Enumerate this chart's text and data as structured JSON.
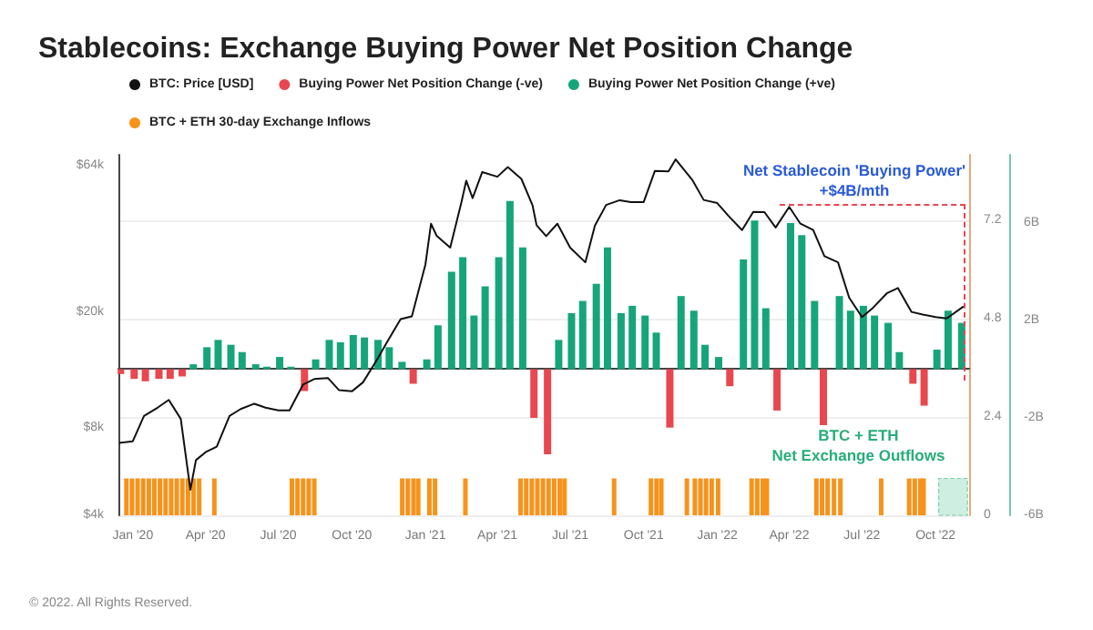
{
  "chart_data": {
    "type": "bar",
    "title": "Stablecoins: Exchange Buying Power Net Position Change",
    "x": [
      "2019-12-15",
      "2020-01-01",
      "2020-01-15",
      "2020-02-01",
      "2020-02-15",
      "2020-03-01",
      "2020-03-15",
      "2020-04-01",
      "2020-04-15",
      "2020-05-01",
      "2020-05-15",
      "2020-06-01",
      "2020-06-15",
      "2020-07-01",
      "2020-07-15",
      "2020-08-01",
      "2020-08-15",
      "2020-09-01",
      "2020-09-15",
      "2020-10-01",
      "2020-10-15",
      "2020-11-01",
      "2020-11-15",
      "2020-12-01",
      "2020-12-15",
      "2021-01-01",
      "2021-01-15",
      "2021-02-01",
      "2021-02-15",
      "2021-03-01",
      "2021-03-15",
      "2021-04-01",
      "2021-04-15",
      "2021-05-01",
      "2021-05-15",
      "2021-06-01",
      "2021-06-15",
      "2021-07-01",
      "2021-07-15",
      "2021-08-01",
      "2021-08-15",
      "2021-09-01",
      "2021-09-15",
      "2021-10-01",
      "2021-10-15",
      "2021-11-01",
      "2021-11-15",
      "2021-12-01",
      "2021-12-15",
      "2022-01-01",
      "2022-01-15",
      "2022-02-01",
      "2022-02-15",
      "2022-03-01",
      "2022-03-15",
      "2022-04-01",
      "2022-04-15",
      "2022-05-01",
      "2022-05-12",
      "2022-06-01",
      "2022-06-15",
      "2022-07-01",
      "2022-07-15",
      "2022-08-01",
      "2022-08-15",
      "2022-09-01",
      "2022-09-15",
      "2022-10-01",
      "2022-10-15",
      "2022-11-01"
    ],
    "series": [
      {
        "name": "BTC: Price [USD]",
        "type": "line",
        "axis": "y",
        "color": "#111111",
        "x": [
          "2019-12-15",
          "2020-01-01",
          "2020-01-15",
          "2020-02-01",
          "2020-02-15",
          "2020-03-01",
          "2020-03-13",
          "2020-03-20",
          "2020-04-01",
          "2020-04-15",
          "2020-05-01",
          "2020-05-15",
          "2020-06-01",
          "2020-06-15",
          "2020-07-01",
          "2020-07-15",
          "2020-08-01",
          "2020-08-15",
          "2020-09-01",
          "2020-09-15",
          "2020-10-01",
          "2020-10-15",
          "2020-11-01",
          "2020-11-15",
          "2020-12-01",
          "2020-12-15",
          "2021-01-01",
          "2021-01-08",
          "2021-01-15",
          "2021-02-01",
          "2021-02-15",
          "2021-02-21",
          "2021-03-01",
          "2021-03-13",
          "2021-04-01",
          "2021-04-14",
          "2021-05-01",
          "2021-05-15",
          "2021-05-20",
          "2021-06-01",
          "2021-06-15",
          "2021-07-01",
          "2021-07-20",
          "2021-08-01",
          "2021-08-15",
          "2021-09-01",
          "2021-09-15",
          "2021-10-01",
          "2021-10-15",
          "2021-11-01",
          "2021-11-10",
          "2021-12-01",
          "2021-12-15",
          "2022-01-01",
          "2022-01-15",
          "2022-02-01",
          "2022-02-15",
          "2022-03-01",
          "2022-03-15",
          "2022-04-01",
          "2022-04-15",
          "2022-05-01",
          "2022-05-15",
          "2022-06-01",
          "2022-06-15",
          "2022-07-01",
          "2022-07-15",
          "2022-08-01",
          "2022-08-15",
          "2022-09-01",
          "2022-09-15",
          "2022-10-01",
          "2022-10-15",
          "2022-11-05"
        ],
        "values": [
          7100,
          7200,
          8800,
          9400,
          10000,
          8600,
          4900,
          6200,
          6600,
          6900,
          8800,
          9300,
          9700,
          9400,
          9200,
          9200,
          11300,
          11800,
          11900,
          10800,
          10700,
          11500,
          13700,
          16000,
          19000,
          19400,
          29300,
          40500,
          36800,
          33500,
          48000,
          57000,
          49600,
          61000,
          58800,
          63500,
          57800,
          46800,
          40000,
          36700,
          40500,
          33500,
          29800,
          39900,
          47000,
          48800,
          48100,
          48100,
          61600,
          61300,
          67500,
          57200,
          48900,
          47700,
          43100,
          38500,
          44500,
          44400,
          39300,
          46300,
          40500,
          38500,
          31300,
          29800,
          22500,
          19300,
          20800,
          23300,
          24300,
          20100,
          19700,
          19300,
          19100,
          21000
        ]
      },
      {
        "name": "Buying Power Net Position Change (-ve)",
        "axis": "y2",
        "color": "#e8474f",
        "values": [
          -0.2,
          -0.4,
          -0.5,
          -0.4,
          -0.4,
          -0.3,
          null,
          null,
          null,
          null,
          null,
          null,
          null,
          null,
          null,
          -0.9,
          null,
          null,
          null,
          null,
          null,
          null,
          null,
          null,
          -0.6,
          null,
          null,
          null,
          null,
          null,
          null,
          null,
          null,
          null,
          -2.0,
          -3.5,
          null,
          null,
          null,
          null,
          null,
          null,
          null,
          null,
          null,
          -2.4,
          null,
          null,
          null,
          null,
          -0.7,
          null,
          null,
          null,
          -1.7,
          null,
          null,
          null,
          -2.3,
          null,
          null,
          null,
          null,
          null,
          null,
          -0.6,
          -1.5,
          null,
          null,
          null
        ]
      },
      {
        "name": "Buying Power Net Position Change (+ve)",
        "axis": "y2",
        "color": "#16a57a",
        "values": [
          null,
          null,
          null,
          null,
          null,
          null,
          0.2,
          0.9,
          1.2,
          1.0,
          0.7,
          0.2,
          0.1,
          0.5,
          0.1,
          null,
          0.4,
          1.2,
          1.1,
          1.4,
          1.3,
          1.2,
          0.9,
          0.3,
          null,
          0.4,
          1.8,
          4.0,
          4.6,
          2.2,
          3.4,
          4.6,
          6.9,
          5.0,
          null,
          null,
          1.2,
          2.3,
          2.8,
          3.5,
          5.0,
          2.3,
          2.6,
          2.2,
          1.5,
          null,
          3.0,
          2.4,
          1.0,
          0.5,
          null,
          4.5,
          6.1,
          2.5,
          null,
          6.0,
          5.5,
          2.8,
          null,
          3.0,
          2.4,
          2.6,
          2.2,
          1.9,
          0.7,
          null,
          null,
          0.8,
          2.4,
          1.9
        ]
      },
      {
        "name": "BTC + ETH 30-day Exchange Inflows",
        "axis": "y3",
        "color": "#f7931a",
        "x": [
          "2019-12-24",
          "2019-12-31",
          "2020-01-07",
          "2020-01-14",
          "2020-01-21",
          "2020-01-28",
          "2020-02-04",
          "2020-02-11",
          "2020-02-18",
          "2020-02-25",
          "2020-03-03",
          "2020-03-10",
          "2020-03-17",
          "2020-03-24",
          "2020-04-12",
          "2020-07-18",
          "2020-07-25",
          "2020-08-01",
          "2020-08-08",
          "2020-08-15",
          "2020-12-03",
          "2020-12-10",
          "2020-12-17",
          "2020-12-23",
          "2021-01-06",
          "2021-01-13",
          "2021-02-20",
          "2021-04-30",
          "2021-05-07",
          "2021-05-14",
          "2021-05-21",
          "2021-05-28",
          "2021-06-04",
          "2021-06-11",
          "2021-06-18",
          "2021-06-24",
          "2021-08-25",
          "2021-10-10",
          "2021-10-17",
          "2021-10-23",
          "2021-11-24",
          "2021-12-04",
          "2021-12-11",
          "2021-12-18",
          "2021-12-25",
          "2022-01-02",
          "2022-02-13",
          "2022-02-20",
          "2022-02-27",
          "2022-03-04",
          "2022-05-05",
          "2022-05-12",
          "2022-05-19",
          "2022-05-27",
          "2022-06-04",
          "2022-07-25",
          "2022-08-29",
          "2022-09-05",
          "2022-09-12",
          "2022-09-16"
        ],
        "values": [
          0.9,
          0.9,
          0.9,
          0.9,
          0.9,
          0.9,
          0.9,
          0.9,
          0.9,
          0.9,
          0.9,
          0.9,
          0.9,
          0.9,
          0.9,
          0.9,
          0.9,
          0.9,
          0.9,
          0.9,
          0.9,
          0.9,
          0.9,
          0.9,
          0.9,
          0.9,
          0.9,
          0.9,
          0.9,
          0.9,
          0.9,
          0.9,
          0.9,
          0.9,
          0.9,
          0.9,
          0.9,
          0.9,
          0.9,
          0.9,
          0.9,
          0.9,
          0.9,
          0.9,
          0.9,
          0.9,
          0.9,
          0.9,
          0.9,
          0.9,
          0.9,
          0.9,
          0.9,
          0.9,
          0.9,
          0.9,
          0.9,
          0.9,
          0.9,
          0.9
        ]
      }
    ],
    "xlim": [
      "2019-12-14",
      "2022-11-12"
    ],
    "xticks": [
      {
        "value": "2020-01-01",
        "label": "Jan '20"
      },
      {
        "value": "2020-04-01",
        "label": "Apr '20"
      },
      {
        "value": "2020-07-01",
        "label": "Jul '20"
      },
      {
        "value": "2020-10-01",
        "label": "Oct '20"
      },
      {
        "value": "2021-01-01",
        "label": "Jan '21"
      },
      {
        "value": "2021-04-01",
        "label": "Apr '21"
      },
      {
        "value": "2021-07-01",
        "label": "Jul '21"
      },
      {
        "value": "2021-10-01",
        "label": "Oct '21"
      },
      {
        "value": "2022-01-01",
        "label": "Jan '22"
      },
      {
        "value": "2022-04-01",
        "label": "Apr '22"
      },
      {
        "value": "2022-07-01",
        "label": "Jul '22"
      },
      {
        "value": "2022-10-01",
        "label": "Oct '22"
      }
    ],
    "log": "y",
    "ylim": [
      4000,
      70000
    ],
    "yticks": [
      {
        "value": 4000,
        "label": "$4k"
      },
      {
        "value": 8000,
        "label": "$8k"
      },
      {
        "value": 20000,
        "label": "$20k"
      },
      {
        "value": 64000,
        "label": "$64k"
      }
    ],
    "y2lim": [
      -6,
      8.8
    ],
    "y2ticks": [
      {
        "value": -6,
        "label": "-6B"
      },
      {
        "value": -2,
        "label": "-2B"
      },
      {
        "value": 2,
        "label": "2B"
      },
      {
        "value": 6,
        "label": "6B"
      }
    ],
    "y3lim": [
      0,
      8.8
    ],
    "y3ticks": [
      0,
      2.4,
      4.8,
      7.2
    ],
    "bands": [
      {
        "axis": "x",
        "from": "2022-10-05",
        "to": "2022-11-10",
        "label": "BTC + ETH\nNet Exchange Outflows",
        "color": "#cdeee0"
      }
    ],
    "annotations": [
      "Net Stablecoin 'Buying Power'\n+$4B/mth",
      "© 2022. All Rights Reserved."
    ],
    "grid": "y",
    "legend": "top left"
  }
}
